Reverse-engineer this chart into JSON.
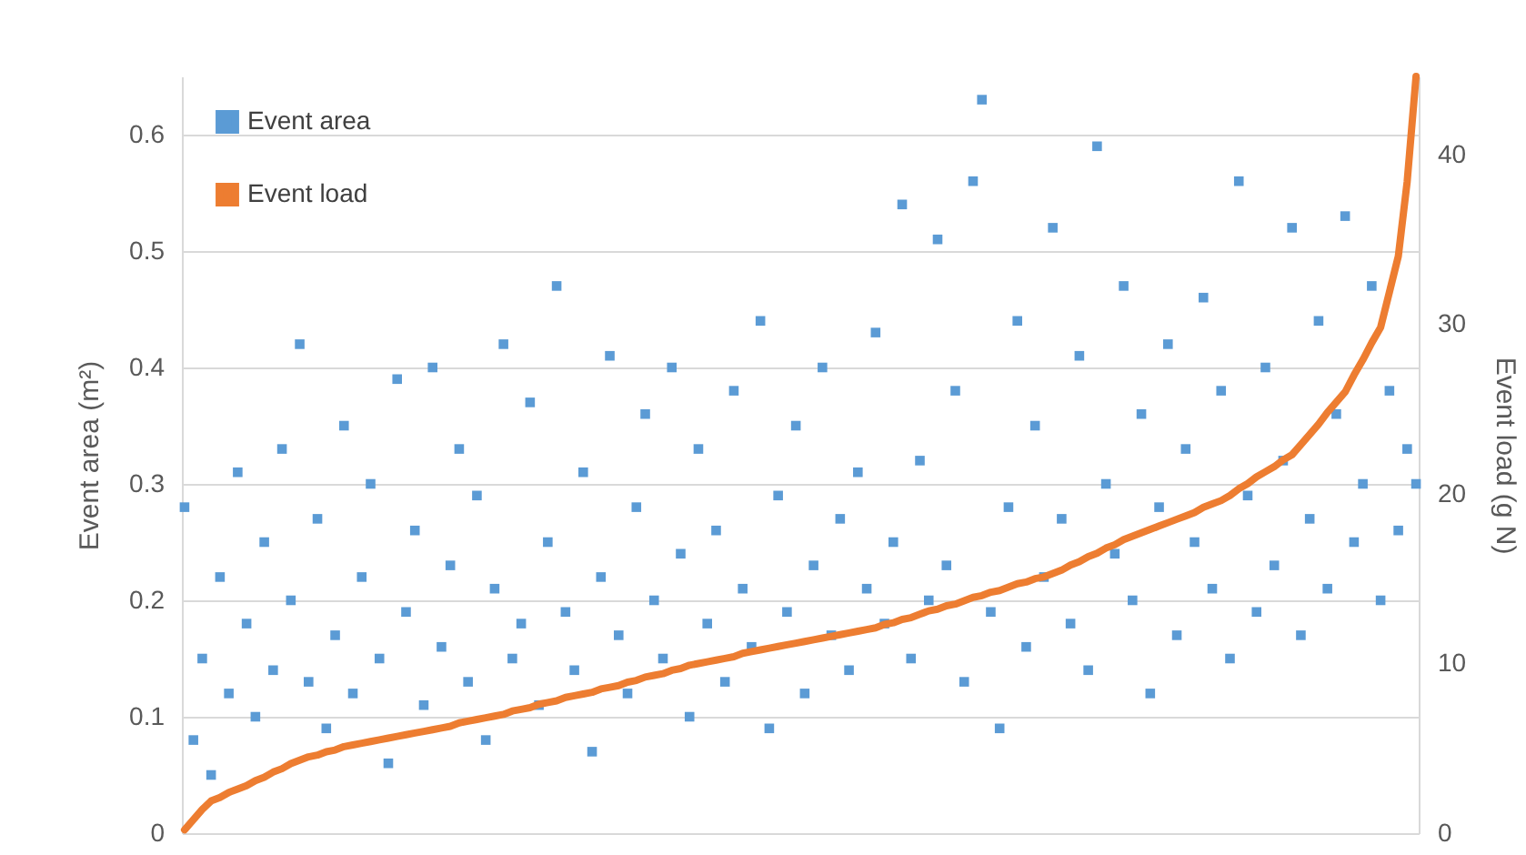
{
  "chart_data": {
    "type": "scatter",
    "ylabel": "Event area (m²)",
    "y2label": "Event load (g N)",
    "categories": [
      null,
      null,
      null,
      null,
      null,
      null,
      null,
      null,
      null,
      null,
      null,
      null,
      null,
      null,
      null,
      null,
      null,
      null,
      null,
      null,
      null,
      null,
      null,
      null,
      null,
      null,
      null,
      null,
      null,
      null,
      null,
      null,
      null,
      null,
      null,
      null,
      null,
      null,
      null,
      null,
      null,
      null,
      null,
      null,
      null,
      null,
      null,
      null,
      null,
      null,
      null,
      null,
      null,
      null,
      null,
      null,
      null,
      null,
      null,
      null,
      null,
      null,
      null,
      null,
      null,
      null,
      null,
      null,
      null,
      null,
      null,
      null,
      null,
      null,
      null,
      null,
      null,
      null,
      null,
      null,
      null,
      null,
      null,
      null,
      null,
      null,
      null,
      null,
      null,
      null,
      null,
      null,
      null,
      null,
      null,
      null,
      null,
      null,
      null,
      null,
      null,
      null,
      null,
      null,
      null,
      null,
      null,
      null,
      null,
      null,
      null,
      null,
      null,
      null,
      null,
      null,
      null,
      null,
      null,
      null,
      null,
      null,
      null,
      null,
      null,
      null,
      null,
      null,
      null,
      null,
      null,
      null,
      null,
      null,
      null,
      null,
      null,
      null,
      null,
      null
    ],
    "series": [
      {
        "name": "Event area",
        "marker": "square",
        "color": "#5b9bd5",
        "values": [
          0.28,
          0.08,
          0.15,
          0.05,
          0.22,
          0.12,
          0.31,
          0.18,
          0.1,
          0.25,
          0.14,
          0.33,
          0.2,
          0.42,
          0.13,
          0.27,
          0.09,
          0.17,
          0.35,
          0.12,
          0.22,
          0.3,
          0.15,
          0.06,
          0.39,
          0.19,
          0.26,
          0.11,
          0.4,
          0.16,
          0.23,
          0.33,
          0.13,
          0.29,
          0.08,
          0.21,
          0.42,
          0.15,
          0.18,
          0.37,
          0.11,
          0.25,
          0.47,
          0.19,
          0.14,
          0.31,
          0.07,
          0.22,
          0.41,
          0.17,
          0.12,
          0.28,
          0.36,
          0.2,
          0.15,
          0.4,
          0.24,
          0.1,
          0.33,
          0.18,
          0.26,
          0.13,
          0.38,
          0.21,
          0.16,
          0.44,
          0.09,
          0.29,
          0.19,
          0.35,
          0.12,
          0.23,
          0.4,
          0.17,
          0.27,
          0.14,
          0.31,
          0.21,
          0.43,
          0.18,
          0.25,
          0.54,
          0.15,
          0.32,
          0.2,
          0.51,
          0.23,
          0.38,
          0.13,
          0.56,
          0.63,
          0.19,
          0.09,
          0.28,
          0.44,
          0.16,
          0.35,
          0.22,
          0.52,
          0.27,
          0.18,
          0.41,
          0.14,
          0.59,
          0.3,
          0.24,
          0.47,
          0.2,
          0.36,
          0.12,
          0.28,
          0.42,
          0.17,
          0.33,
          0.25,
          0.46,
          0.21,
          0.38,
          0.15,
          0.56,
          0.29,
          0.19,
          0.4,
          0.23,
          0.32,
          0.52,
          0.17,
          0.27,
          0.44,
          0.21,
          0.36,
          0.53,
          0.25,
          0.3,
          0.47,
          0.2,
          0.38,
          0.26,
          0.33,
          0.3
        ]
      },
      {
        "name": "Event load",
        "type": "line",
        "marker": "none",
        "axis": "y2",
        "color": "#ed7d31",
        "values": [
          0.2,
          0.8,
          1.4,
          1.9,
          2.1,
          2.4,
          2.6,
          2.8,
          3.1,
          3.3,
          3.6,
          3.8,
          4.1,
          4.3,
          4.5,
          4.6,
          4.8,
          4.9,
          5.1,
          5.2,
          5.3,
          5.4,
          5.5,
          5.6,
          5.7,
          5.8,
          5.9,
          6.0,
          6.1,
          6.2,
          6.3,
          6.5,
          6.6,
          6.7,
          6.8,
          6.9,
          7.0,
          7.2,
          7.3,
          7.4,
          7.6,
          7.7,
          7.8,
          8.0,
          8.1,
          8.2,
          8.3,
          8.5,
          8.6,
          8.7,
          8.9,
          9.0,
          9.2,
          9.3,
          9.4,
          9.6,
          9.7,
          9.9,
          10.0,
          10.1,
          10.2,
          10.3,
          10.4,
          10.6,
          10.7,
          10.8,
          10.9,
          11.0,
          11.1,
          11.2,
          11.3,
          11.4,
          11.5,
          11.6,
          11.7,
          11.8,
          11.9,
          12.0,
          12.1,
          12.3,
          12.4,
          12.6,
          12.7,
          12.9,
          13.1,
          13.2,
          13.4,
          13.5,
          13.7,
          13.9,
          14.0,
          14.2,
          14.3,
          14.5,
          14.7,
          14.8,
          15.0,
          15.1,
          15.3,
          15.5,
          15.8,
          16.0,
          16.3,
          16.5,
          16.8,
          17.0,
          17.3,
          17.5,
          17.7,
          17.9,
          18.1,
          18.3,
          18.5,
          18.7,
          18.9,
          19.2,
          19.4,
          19.6,
          19.9,
          20.3,
          20.6,
          21.0,
          21.3,
          21.6,
          22.0,
          22.3,
          22.9,
          23.5,
          24.1,
          24.8,
          25.4,
          26.0,
          27.0,
          27.9,
          28.9,
          29.8,
          31.9,
          34.0,
          38.4,
          44.6
        ]
      }
    ],
    "ylim": [
      0,
      0.65
    ],
    "yticks": [
      {
        "value": 0,
        "label": "0"
      },
      0.1,
      0.2,
      0.3,
      0.4,
      0.5,
      0.6
    ],
    "y2lim": [
      0,
      44.6
    ],
    "y2ticks": [
      0,
      10,
      20,
      30,
      40
    ],
    "grid": "y",
    "legend": "top left",
    "line_style": "solid"
  }
}
